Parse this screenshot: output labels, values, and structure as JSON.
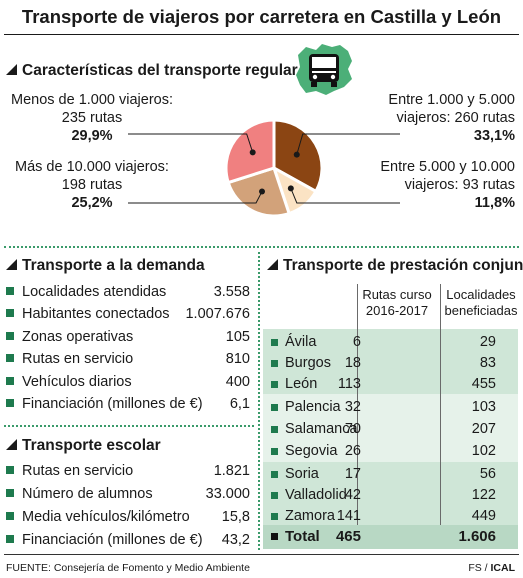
{
  "title": "Transporte de viajeros por carretera en Castilla y León",
  "regular": {
    "heading": "Características del transporte regular",
    "labels": [
      {
        "line1": "Menos de 1.000 viajeros:",
        "line2": "235 rutas",
        "pct": "29,9%"
      },
      {
        "line1": "Entre 1.000 y 5.000",
        "line2": "viajeros: 260 rutas",
        "pct": "33,1%"
      },
      {
        "line1": "Más de 10.000 viajeros:",
        "line2": "198 rutas",
        "pct": "25,2%"
      },
      {
        "line1": "Entre 5.000 y 10.000",
        "line2": "viajeros: 93 rutas",
        "pct": "11,8%"
      }
    ]
  },
  "demanda": {
    "heading": "Transporte a la demanda",
    "items": [
      {
        "label": "Localidades atendidas",
        "value": "3.558"
      },
      {
        "label": "Habitantes conectados",
        "value": "1.007.676"
      },
      {
        "label": "Zonas operativas",
        "value": "105"
      },
      {
        "label": "Rutas en servicio",
        "value": "810"
      },
      {
        "label": "Vehículos diarios",
        "value": "400"
      },
      {
        "label": "Financiación (millones de €)",
        "value": "6,1"
      }
    ]
  },
  "escolar": {
    "heading": "Transporte escolar",
    "items": [
      {
        "label": "Rutas en servicio",
        "value": "1.821"
      },
      {
        "label": "Número de alumnos",
        "value": "33.000"
      },
      {
        "label": "Media vehículos/kilómetro",
        "value": "15,8"
      },
      {
        "label": "Financiación (millones de €)",
        "value": "43,2"
      }
    ]
  },
  "conjunta": {
    "heading": "Transporte de prestación conjunta",
    "col1_line1": "Rutas curso",
    "col1_line2": "2016-2017",
    "col2_line1": "Localidades",
    "col2_line2": "beneficiadas",
    "rows": [
      {
        "name": "Ávila",
        "rutas": "6",
        "localidades": "29"
      },
      {
        "name": "Burgos",
        "rutas": "18",
        "localidades": "83"
      },
      {
        "name": "León",
        "rutas": "113",
        "localidades": "455"
      },
      {
        "name": "Palencia",
        "rutas": "32",
        "localidades": "103"
      },
      {
        "name": "Salamanca",
        "rutas": "70",
        "localidades": "207"
      },
      {
        "name": "Segovia",
        "rutas": "26",
        "localidades": "102"
      },
      {
        "name": "Soria",
        "rutas": "17",
        "localidades": "56"
      },
      {
        "name": "Valladolid",
        "rutas": "42",
        "localidades": "122"
      },
      {
        "name": "Zamora",
        "rutas": "141",
        "localidades": "449"
      }
    ],
    "total": {
      "name": "Total",
      "rutas": "465",
      "localidades": "1.606"
    }
  },
  "footer": {
    "source": "FUENTE: Consejería de Fomento y Medio Ambiente",
    "credit_a": "FS / ",
    "credit_b": "ICAL"
  },
  "colors": {
    "brown_dark": "#8b4513",
    "pink": "#f08080",
    "tan": "#d2a27a",
    "cream": "#fbe3c4",
    "green": "#1e7a4e",
    "green_light": "#cfe6d7"
  },
  "icons": [
    "castilla-leon-map-icon",
    "bus-icon"
  ],
  "chart_data": {
    "type": "pie",
    "title": "Características del transporte regular",
    "slices": [
      {
        "label": "Entre 1.000 y 5.000 viajeros",
        "routes": 260,
        "value": 33.1,
        "color": "#8b4513"
      },
      {
        "label": "Entre 5.000 y 10.000 viajeros",
        "routes": 93,
        "value": 11.8,
        "color": "#fbe3c4"
      },
      {
        "label": "Más de 10.000 viajeros",
        "routes": 198,
        "value": 25.2,
        "color": "#d2a27a"
      },
      {
        "label": "Menos de 1.000 viajeros",
        "routes": 235,
        "value": 29.9,
        "color": "#f08080"
      }
    ]
  }
}
